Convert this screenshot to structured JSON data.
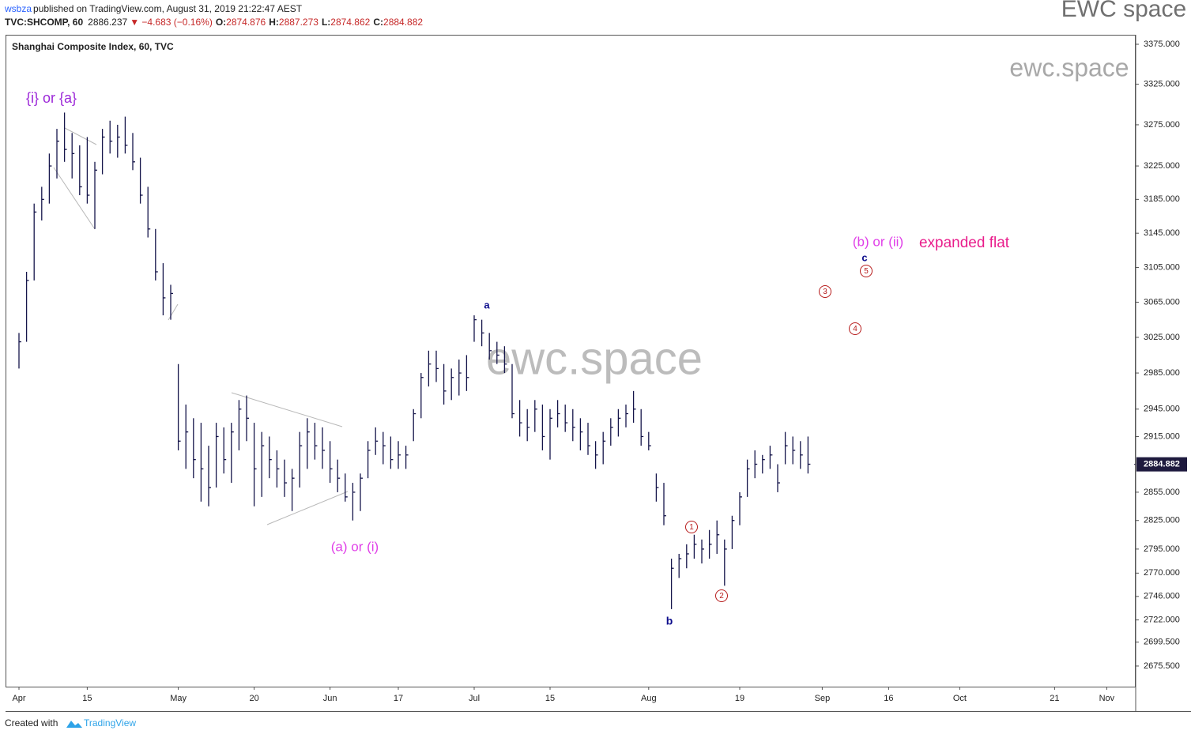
{
  "header": {
    "user": "wsbza",
    "published": "published on TradingView.com, August 31, 2019 21:22:47 AEST",
    "symbol": "TVC:SHCOMP, 60",
    "price": "2886.237",
    "change": "▼ −4.683 (−0.16%)",
    "ohlc": [
      {
        "label": "O:",
        "value": "2874.876"
      },
      {
        "label": "H:",
        "value": "2887.273"
      },
      {
        "label": "L:",
        "value": "2874.862"
      },
      {
        "label": "C:",
        "value": "2884.882"
      }
    ],
    "brand": "EWC space"
  },
  "footer": {
    "text": "Created with",
    "logo": "TradingView"
  },
  "chart_data": {
    "type": "hlc",
    "title": "Shanghai Composite Index, 60, TVC",
    "color": "#15154a",
    "log_scale": true,
    "grid": false,
    "watermarks": [
      "ewc.space",
      "ewc.space"
    ],
    "x": [
      "Apr 1",
      "Apr 2",
      "Apr 3",
      "Apr 4",
      "Apr 8",
      "Apr 9",
      "Apr 10",
      "Apr 11",
      "Apr 12",
      "Apr 15",
      "Apr 16",
      "Apr 17",
      "Apr 18",
      "Apr 19",
      "Apr 22",
      "Apr 23",
      "Apr 24",
      "Apr 25",
      "Apr 26",
      "Apr 29",
      "Apr 30",
      "May 6",
      "May 7",
      "May 8",
      "May 9",
      "May 10",
      "May 13",
      "May 14",
      "May 15",
      "May 16",
      "May 17",
      "May 20",
      "May 21",
      "May 22",
      "May 23",
      "May 24",
      "May 27",
      "May 28",
      "May 29",
      "May 30",
      "May 31",
      "Jun 3",
      "Jun 4",
      "Jun 5",
      "Jun 6",
      "Jun 10",
      "Jun 11",
      "Jun 12",
      "Jun 13",
      "Jun 14",
      "Jun 17",
      "Jun 18",
      "Jun 19",
      "Jun 20",
      "Jun 21",
      "Jun 24",
      "Jun 25",
      "Jun 26",
      "Jun 27",
      "Jun 28",
      "Jul 1",
      "Jul 2",
      "Jul 3",
      "Jul 4",
      "Jul 5",
      "Jul 8",
      "Jul 9",
      "Jul 10",
      "Jul 11",
      "Jul 12",
      "Jul 15",
      "Jul 16",
      "Jul 17",
      "Jul 18",
      "Jul 19",
      "Jul 22",
      "Jul 23",
      "Jul 24",
      "Jul 25",
      "Jul 26",
      "Jul 29",
      "Jul 30",
      "Jul 31",
      "Aug 1",
      "Aug 2",
      "Aug 5",
      "Aug 6",
      "Aug 7",
      "Aug 8",
      "Aug 9",
      "Aug 12",
      "Aug 13",
      "Aug 14",
      "Aug 15",
      "Aug 16",
      "Aug 19",
      "Aug 20",
      "Aug 21",
      "Aug 22",
      "Aug 23",
      "Aug 26",
      "Aug 27",
      "Aug 28",
      "Aug 29",
      "Aug 30"
    ],
    "high": [
      3030,
      3100,
      3180,
      3200,
      3240,
      3270,
      3290,
      3265,
      3250,
      3260,
      3230,
      3270,
      3280,
      3275,
      3285,
      3265,
      3235,
      3200,
      3150,
      3110,
      3085,
      2995,
      2950,
      2935,
      2930,
      2905,
      2930,
      2925,
      2930,
      2955,
      2960,
      2930,
      2920,
      2915,
      2900,
      2890,
      2880,
      2920,
      2935,
      2930,
      2925,
      2910,
      2890,
      2875,
      2865,
      2875,
      2910,
      2925,
      2920,
      2915,
      2910,
      2905,
      2945,
      2985,
      3010,
      3010,
      2995,
      2990,
      3000,
      3005,
      3050,
      3045,
      3030,
      3020,
      3015,
      2995,
      2955,
      2945,
      2955,
      2950,
      2945,
      2955,
      2950,
      2945,
      2935,
      2930,
      2910,
      2920,
      2935,
      2945,
      2950,
      2965,
      2945,
      2920,
      2875,
      2865,
      2785,
      2790,
      2800,
      2810,
      2805,
      2815,
      2825,
      2805,
      2830,
      2855,
      2890,
      2900,
      2895,
      2905,
      2885,
      2920,
      2915,
      2910,
      2915
    ],
    "low": [
      2990,
      3020,
      3090,
      3160,
      3180,
      3210,
      3230,
      3210,
      3190,
      3180,
      3150,
      3215,
      3240,
      3235,
      3240,
      3220,
      3180,
      3140,
      3090,
      3050,
      3045,
      2900,
      2880,
      2870,
      2845,
      2840,
      2860,
      2875,
      2865,
      2900,
      2910,
      2840,
      2850,
      2870,
      2860,
      2850,
      2835,
      2860,
      2880,
      2890,
      2880,
      2865,
      2855,
      2845,
      2825,
      2835,
      2870,
      2895,
      2885,
      2880,
      2880,
      2880,
      2910,
      2935,
      2970,
      2975,
      2950,
      2955,
      2960,
      2965,
      3020,
      3015,
      3000,
      2995,
      2985,
      2935,
      2915,
      2910,
      2920,
      2900,
      2890,
      2925,
      2920,
      2910,
      2900,
      2895,
      2880,
      2885,
      2905,
      2915,
      2925,
      2930,
      2905,
      2900,
      2845,
      2820,
      2733,
      2765,
      2775,
      2785,
      2780,
      2785,
      2790,
      2757,
      2795,
      2820,
      2850,
      2870,
      2875,
      2880,
      2855,
      2885,
      2885,
      2880,
      2875
    ],
    "close": [
      3020,
      3090,
      3170,
      3185,
      3225,
      3255,
      3245,
      3240,
      3200,
      3190,
      3220,
      3260,
      3255,
      3260,
      3250,
      3230,
      3190,
      3150,
      3100,
      3070,
      3075,
      2910,
      2920,
      2890,
      2880,
      2860,
      2915,
      2890,
      2920,
      2945,
      2935,
      2880,
      2905,
      2890,
      2880,
      2865,
      2870,
      2905,
      2920,
      2905,
      2900,
      2880,
      2870,
      2850,
      2855,
      2870,
      2900,
      2910,
      2905,
      2890,
      2895,
      2895,
      2940,
      2980,
      2995,
      2990,
      2965,
      2980,
      2985,
      2980,
      3045,
      3030,
      3010,
      3005,
      2995,
      2940,
      2930,
      2925,
      2945,
      2915,
      2935,
      2940,
      2930,
      2925,
      2920,
      2905,
      2895,
      2910,
      2925,
      2935,
      2940,
      2945,
      2915,
      2905,
      2860,
      2830,
      2775,
      2785,
      2790,
      2800,
      2795,
      2800,
      2810,
      2795,
      2825,
      2850,
      2880,
      2885,
      2890,
      2895,
      2865,
      2905,
      2900,
      2895,
      2885
    ],
    "last_price": 2884.882,
    "last_price_color": "#1e1a3e",
    "ylim": [
      2655,
      3387
    ],
    "yticks": [
      {
        "value": 3375,
        "label": "3375.000"
      },
      {
        "value": 3325,
        "label": "3325.000"
      },
      {
        "value": 3275,
        "label": "3275.000"
      },
      {
        "value": 3225,
        "label": "3225.000"
      },
      {
        "value": 3185,
        "label": "3185.000"
      },
      {
        "value": 3145,
        "label": "3145.000"
      },
      {
        "value": 3105,
        "label": "3105.000"
      },
      {
        "value": 3065,
        "label": "3065.000"
      },
      {
        "value": 3025,
        "label": "3025.000"
      },
      {
        "value": 2985,
        "label": "2985.000"
      },
      {
        "value": 2945,
        "label": "2945.000"
      },
      {
        "value": 2915,
        "label": "2915.000"
      },
      {
        "value": 2855,
        "label": "2855.000"
      },
      {
        "value": 2825,
        "label": "2825.000"
      },
      {
        "value": 2795,
        "label": "2795.000"
      },
      {
        "value": 2770,
        "label": "2770.000"
      },
      {
        "value": 2746,
        "label": "2746.000"
      },
      {
        "value": 2722,
        "label": "2722.000"
      },
      {
        "value": 2699.5,
        "label": "2699.500"
      },
      {
        "value": 2675.5,
        "label": "2675.500"
      }
    ],
    "xticks": [
      {
        "value": "Apr 1",
        "label": "Apr"
      },
      {
        "value": "Apr 15",
        "label": "15"
      },
      {
        "value": "May 6",
        "label": "May"
      },
      {
        "value": "May 20",
        "label": "20"
      },
      {
        "value": "Jun 3",
        "label": "Jun"
      },
      {
        "value": "Jun 17",
        "label": "17"
      },
      {
        "value": "Jul 1",
        "label": "Jul"
      },
      {
        "value": "Jul 15",
        "label": "15"
      },
      {
        "value": "Aug 1",
        "label": "Aug"
      },
      {
        "value": "Aug 19",
        "label": "19"
      },
      {
        "value": "Sep 2",
        "label": "Sep"
      },
      {
        "value": "Sep 16",
        "label": "16"
      },
      {
        "value": "Oct 1",
        "label": "Oct"
      },
      {
        "value": "Oct 21",
        "label": "21"
      },
      {
        "value": "Nov 1",
        "label": "Nov"
      }
    ],
    "annotations": [
      {
        "text": "{i} or {a}",
        "color": "#9c27d8"
      },
      {
        "text": "(a) or (i)",
        "color": "#e040e8"
      },
      {
        "text": "a",
        "color": "#0d0d8c"
      },
      {
        "text": "b",
        "color": "#0d0d8c"
      },
      {
        "text": "c",
        "color": "#0d0d8c"
      },
      {
        "text": "(b) or (ii)",
        "color": "#e040e8"
      },
      {
        "text": "expanded flat",
        "color": "#e91e8c"
      }
    ],
    "wave_labels": [
      "1",
      "2",
      "3",
      "4",
      "5"
    ],
    "wave_color": "#b71c1c"
  }
}
